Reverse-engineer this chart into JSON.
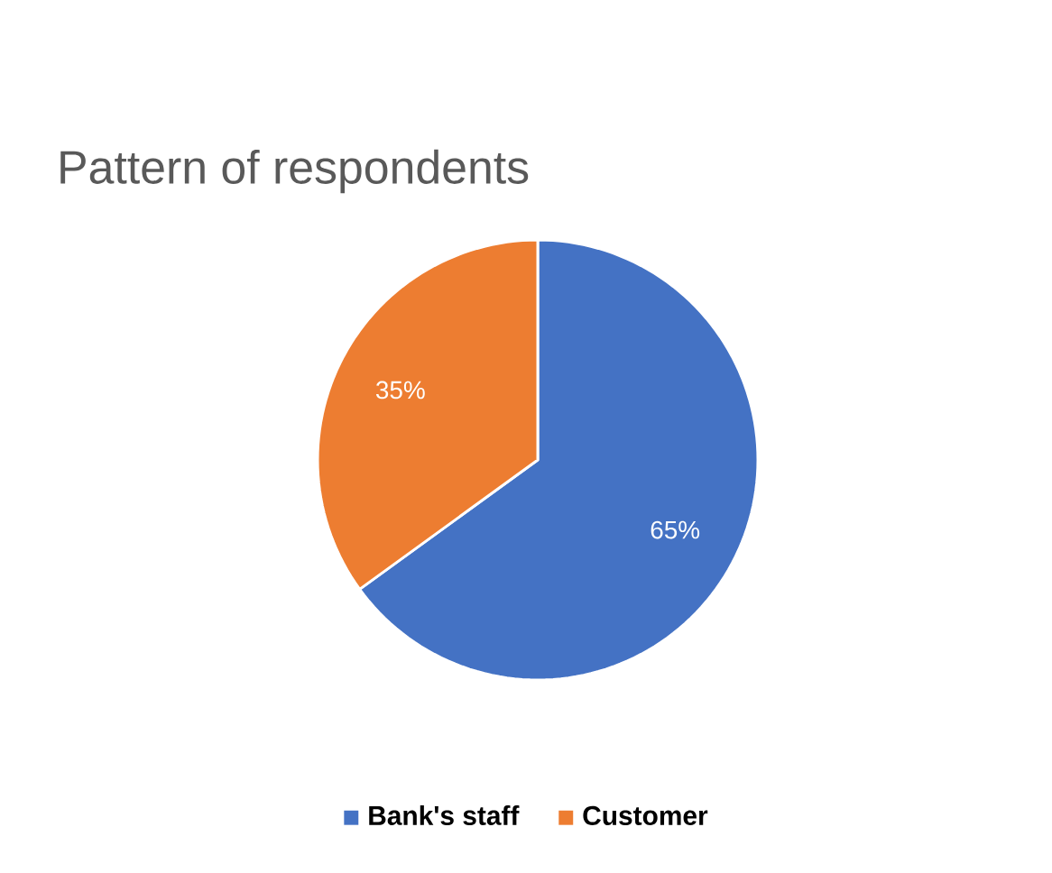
{
  "chart_data": {
    "type": "pie",
    "title": "Pattern of respondents",
    "categories": [
      "Bank's staff",
      "Customer"
    ],
    "values": [
      65,
      35
    ],
    "value_labels": [
      "65%",
      "35%"
    ],
    "colors": [
      "#4472c4",
      "#ed7d31"
    ],
    "legend": "bottom"
  }
}
